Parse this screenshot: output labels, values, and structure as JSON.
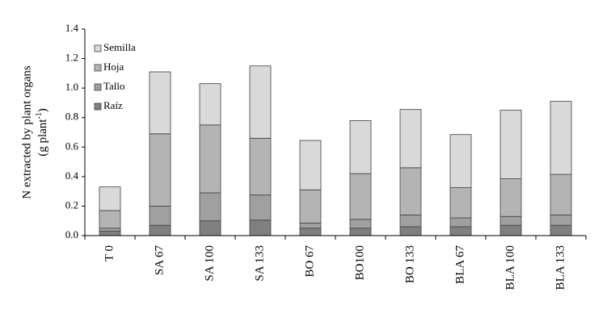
{
  "chart_data": {
    "type": "stacked_bar",
    "ylabel": "N extracted by plant organs",
    "ylabel_unit": [
      "(g plant",
      "-1",
      ")"
    ],
    "categories": [
      "T 0",
      "SA 67",
      "SA 100",
      "SA 133",
      "BO 67",
      "BO100",
      "BO 133",
      "BLA 67",
      "BLA 100",
      "BLA 133"
    ],
    "series": [
      {
        "name": "Raíz",
        "color": "#808080",
        "values": [
          0.03,
          0.07,
          0.1,
          0.105,
          0.05,
          0.05,
          0.06,
          0.06,
          0.07,
          0.07
        ]
      },
      {
        "name": "Tallo",
        "color": "#a0a0a0",
        "values": [
          0.02,
          0.13,
          0.19,
          0.17,
          0.035,
          0.06,
          0.08,
          0.06,
          0.06,
          0.07
        ]
      },
      {
        "name": "Hoja",
        "color": "#b4b4b4",
        "values": [
          0.12,
          0.49,
          0.46,
          0.385,
          0.225,
          0.31,
          0.32,
          0.205,
          0.255,
          0.275
        ]
      },
      {
        "name": "Semilla",
        "color": "#d9d9d9",
        "values": [
          0.16,
          0.42,
          0.28,
          0.49,
          0.335,
          0.36,
          0.395,
          0.36,
          0.465,
          0.495
        ]
      }
    ],
    "ylim": [
      0,
      1.4
    ],
    "yticks": [
      {
        "value": 0,
        "label": "0.0"
      },
      0.2,
      0.4,
      0.6,
      0.8,
      {
        "value": 1,
        "label": "1.0"
      },
      1.2,
      1.4
    ],
    "legend": "upper-left"
  }
}
